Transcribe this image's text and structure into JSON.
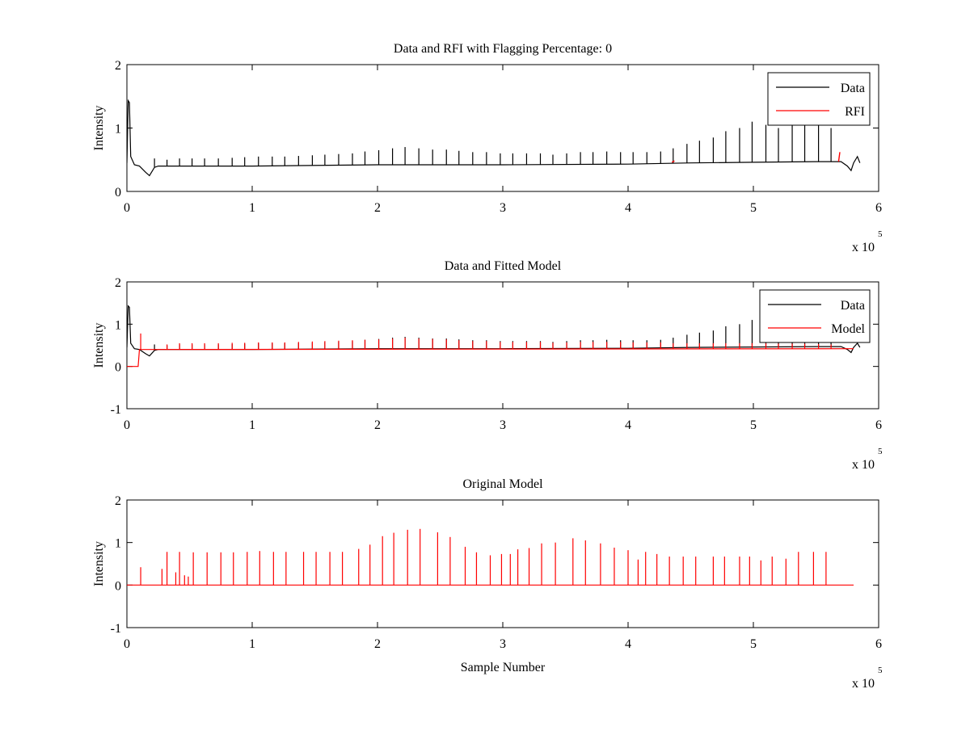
{
  "figure": {
    "background": "#ffffff"
  },
  "chart_data": [
    {
      "type": "line",
      "title": "Data and RFI with Flagging Percentage: 0",
      "xlabel": "",
      "ylabel": "Intensity",
      "xlim": [
        0,
        6
      ],
      "ylim": [
        0,
        2
      ],
      "x_multiplier_text": "x 10",
      "x_multiplier_exp": "5",
      "xticks": [
        0,
        1,
        2,
        3,
        4,
        5,
        6
      ],
      "yticks": [
        0,
        1,
        2
      ],
      "grid": false,
      "legend_placement": "top-right",
      "series": [
        {
          "name": "Data",
          "color": "#000000",
          "baseline": [
            [
              0.0,
              0.45
            ],
            [
              0.01,
              1.43
            ],
            [
              0.02,
              1.4
            ],
            [
              0.03,
              0.55
            ],
            [
              0.06,
              0.42
            ],
            [
              0.1,
              0.4
            ],
            [
              0.15,
              0.3
            ],
            [
              0.18,
              0.25
            ],
            [
              0.22,
              0.38
            ],
            [
              0.25,
              0.4
            ],
            [
              1.0,
              0.4
            ],
            [
              2.0,
              0.42
            ],
            [
              3.0,
              0.42
            ],
            [
              4.0,
              0.43
            ],
            [
              4.5,
              0.45
            ],
            [
              5.0,
              0.46
            ],
            [
              5.5,
              0.47
            ],
            [
              5.7,
              0.47
            ],
            [
              5.75,
              0.4
            ],
            [
              5.78,
              0.33
            ],
            [
              5.8,
              0.45
            ],
            [
              5.83,
              0.55
            ],
            [
              5.85,
              0.45
            ]
          ],
          "spikes_x": [
            0.22,
            0.32,
            0.42,
            0.52,
            0.62,
            0.73,
            0.84,
            0.94,
            1.05,
            1.16,
            1.26,
            1.37,
            1.48,
            1.58,
            1.69,
            1.8,
            1.9,
            2.01,
            2.12,
            2.22,
            2.33,
            2.44,
            2.55,
            2.65,
            2.76,
            2.87,
            2.98,
            3.08,
            3.19,
            3.3,
            3.4,
            3.51,
            3.62,
            3.72,
            3.83,
            3.94,
            4.04,
            4.15,
            4.26,
            4.36,
            4.47,
            4.57,
            4.68,
            4.78,
            4.89,
            4.99,
            5.1,
            5.2,
            5.31,
            5.41,
            5.52,
            5.62
          ],
          "spikes_y": [
            0.52,
            0.5,
            0.52,
            0.52,
            0.52,
            0.52,
            0.53,
            0.54,
            0.55,
            0.55,
            0.55,
            0.56,
            0.57,
            0.58,
            0.59,
            0.6,
            0.63,
            0.65,
            0.68,
            0.7,
            0.68,
            0.66,
            0.66,
            0.64,
            0.62,
            0.62,
            0.6,
            0.6,
            0.6,
            0.6,
            0.58,
            0.6,
            0.62,
            0.62,
            0.63,
            0.62,
            0.62,
            0.62,
            0.63,
            0.68,
            0.75,
            0.8,
            0.85,
            0.95,
            1.0,
            1.1,
            1.05,
            1.0,
            1.05,
            1.05,
            1.1,
            1.0
          ]
        },
        {
          "name": "RFI",
          "color": "#ff0000",
          "segments": [
            [
              [
                4.35,
                0.46
              ],
              [
                4.37,
                0.48
              ]
            ],
            [
              [
                5.68,
                0.47
              ],
              [
                5.69,
                0.62
              ]
            ]
          ]
        }
      ]
    },
    {
      "type": "line",
      "title": "Data and Fitted Model",
      "xlabel": "",
      "ylabel": "Intensity",
      "xlim": [
        0,
        6
      ],
      "ylim": [
        -1,
        2
      ],
      "x_multiplier_text": "x 10",
      "x_multiplier_exp": "5",
      "xticks": [
        0,
        1,
        2,
        3,
        4,
        5,
        6
      ],
      "yticks": [
        -1,
        0,
        1,
        2
      ],
      "grid": false,
      "legend_placement": "top-right",
      "series": [
        {
          "name": "Data",
          "color": "#000000",
          "baseline": [
            [
              0.0,
              0.45
            ],
            [
              0.01,
              1.43
            ],
            [
              0.02,
              1.4
            ],
            [
              0.03,
              0.55
            ],
            [
              0.06,
              0.42
            ],
            [
              0.1,
              0.4
            ],
            [
              0.15,
              0.3
            ],
            [
              0.18,
              0.25
            ],
            [
              0.22,
              0.38
            ],
            [
              0.25,
              0.4
            ],
            [
              1.0,
              0.4
            ],
            [
              2.0,
              0.42
            ],
            [
              3.0,
              0.42
            ],
            [
              4.0,
              0.43
            ],
            [
              4.5,
              0.45
            ],
            [
              5.0,
              0.46
            ],
            [
              5.5,
              0.47
            ],
            [
              5.7,
              0.47
            ],
            [
              5.75,
              0.4
            ],
            [
              5.78,
              0.33
            ],
            [
              5.8,
              0.45
            ],
            [
              5.83,
              0.55
            ],
            [
              5.85,
              0.45
            ]
          ],
          "spikes_x": [
            0.22,
            0.32,
            0.42,
            0.52,
            0.62,
            0.73,
            0.84,
            0.94,
            1.05,
            1.16,
            1.26,
            1.37,
            1.48,
            1.58,
            1.69,
            1.8,
            1.9,
            2.01,
            2.12,
            2.22,
            2.33,
            2.44,
            2.55,
            2.65,
            2.76,
            2.87,
            2.98,
            3.08,
            3.19,
            3.3,
            3.4,
            3.51,
            3.62,
            3.72,
            3.83,
            3.94,
            4.04,
            4.15,
            4.26,
            4.36,
            4.47,
            4.57,
            4.68,
            4.78,
            4.89,
            4.99,
            5.1,
            5.2,
            5.31,
            5.41,
            5.52,
            5.62
          ],
          "spikes_y": [
            0.52,
            0.5,
            0.52,
            0.52,
            0.52,
            0.52,
            0.53,
            0.54,
            0.55,
            0.55,
            0.55,
            0.56,
            0.57,
            0.58,
            0.59,
            0.6,
            0.63,
            0.65,
            0.68,
            0.7,
            0.68,
            0.66,
            0.66,
            0.64,
            0.62,
            0.62,
            0.6,
            0.6,
            0.6,
            0.6,
            0.58,
            0.6,
            0.62,
            0.62,
            0.63,
            0.62,
            0.62,
            0.62,
            0.63,
            0.68,
            0.75,
            0.8,
            0.85,
            0.95,
            1.0,
            1.1,
            1.05,
            1.0,
            1.05,
            1.05,
            1.1,
            1.0
          ]
        },
        {
          "name": "Model",
          "color": "#ff0000",
          "baseline": [
            [
              0.0,
              0.0
            ],
            [
              0.09,
              0.0
            ],
            [
              0.1,
              0.4
            ],
            [
              5.8,
              0.42
            ]
          ],
          "spikes_x": [
            0.11,
            0.32,
            0.42,
            0.52,
            0.62,
            0.73,
            0.84,
            0.94,
            1.05,
            1.16,
            1.26,
            1.37,
            1.48,
            1.58,
            1.69,
            1.8,
            1.9,
            2.01,
            2.12,
            2.22,
            2.33,
            2.44,
            2.55,
            2.65,
            2.76,
            2.87,
            2.98,
            3.08,
            3.19,
            3.3,
            3.4,
            3.51,
            3.62,
            3.72,
            3.83,
            3.94,
            4.04,
            4.15,
            4.26,
            4.36,
            4.47,
            4.57,
            4.68,
            4.78,
            4.89,
            4.99,
            5.1,
            5.2,
            5.31,
            5.41,
            5.52,
            5.62
          ],
          "spikes_y": [
            0.78,
            0.52,
            0.55,
            0.55,
            0.55,
            0.55,
            0.56,
            0.56,
            0.57,
            0.57,
            0.57,
            0.58,
            0.59,
            0.6,
            0.61,
            0.62,
            0.63,
            0.64,
            0.66,
            0.68,
            0.66,
            0.65,
            0.64,
            0.62,
            0.6,
            0.6,
            0.58,
            0.58,
            0.58,
            0.58,
            0.56,
            0.57,
            0.58,
            0.58,
            0.58,
            0.58,
            0.57,
            0.57,
            0.57,
            0.55,
            0.55,
            0.55,
            0.55,
            0.55,
            0.55,
            0.55,
            0.55,
            0.54,
            0.54,
            0.54,
            0.53,
            0.52
          ]
        }
      ]
    },
    {
      "type": "line",
      "title": "Original Model",
      "xlabel": "Sample Number",
      "ylabel": "Intensity",
      "xlim": [
        0,
        6
      ],
      "ylim": [
        -1,
        2
      ],
      "x_multiplier_text": "x 10",
      "x_multiplier_exp": "5",
      "xticks": [
        0,
        1,
        2,
        3,
        4,
        5,
        6
      ],
      "yticks": [
        -1,
        0,
        1,
        2
      ],
      "grid": false,
      "legend_placement": "none",
      "series": [
        {
          "name": "",
          "color": "#ff0000",
          "baseline": [
            [
              0.0,
              0.0
            ],
            [
              5.8,
              0.0
            ]
          ],
          "spikes_x": [
            0.11,
            0.28,
            0.32,
            0.39,
            0.42,
            0.46,
            0.49,
            0.53,
            0.64,
            0.75,
            0.85,
            0.96,
            1.06,
            1.17,
            1.27,
            1.41,
            1.51,
            1.62,
            1.72,
            1.85,
            1.94,
            2.04,
            2.13,
            2.24,
            2.34,
            2.48,
            2.58,
            2.7,
            2.79,
            2.9,
            2.99,
            3.06,
            3.12,
            3.21,
            3.31,
            3.42,
            3.56,
            3.66,
            3.78,
            3.89,
            4.0,
            4.08,
            4.14,
            4.23,
            4.33,
            4.44,
            4.54,
            4.68,
            4.77,
            4.89,
            4.97,
            5.06,
            5.15,
            5.26,
            5.36,
            5.48,
            5.58
          ],
          "spikes_y": [
            0.42,
            0.38,
            0.78,
            0.3,
            0.78,
            0.23,
            0.2,
            0.77,
            0.77,
            0.77,
            0.77,
            0.78,
            0.8,
            0.78,
            0.78,
            0.78,
            0.78,
            0.78,
            0.78,
            0.85,
            0.95,
            1.15,
            1.23,
            1.3,
            1.32,
            1.24,
            1.13,
            0.9,
            0.77,
            0.7,
            0.73,
            0.73,
            0.84,
            0.87,
            0.98,
            1.0,
            1.1,
            1.05,
            0.98,
            0.88,
            0.82,
            0.6,
            0.78,
            0.73,
            0.67,
            0.67,
            0.67,
            0.67,
            0.67,
            0.67,
            0.67,
            0.58,
            0.67,
            0.62,
            0.78,
            0.78,
            0.78
          ]
        }
      ]
    }
  ]
}
